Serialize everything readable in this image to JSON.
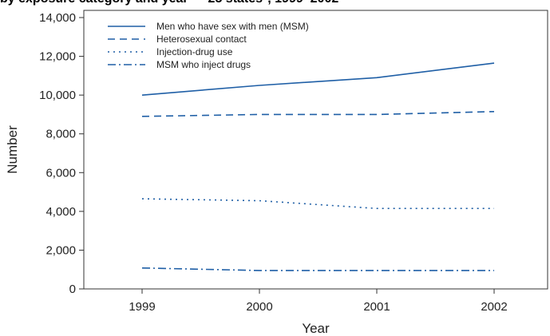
{
  "header": {
    "title": "by exposure category and year — 25 states*, 1999–2002"
  },
  "chart_data": {
    "type": "line",
    "xlabel": "Year",
    "ylabel": "Number",
    "x": [
      "1999",
      "2000",
      "2001",
      "2002"
    ],
    "ylim": [
      0,
      14000
    ],
    "yticks": [
      0,
      2000,
      4000,
      6000,
      8000,
      10000,
      12000,
      14000
    ],
    "ytick_labels": [
      "0",
      "2,000",
      "4,000",
      "6,000",
      "8,000",
      "10,000",
      "12,000",
      "14,000"
    ],
    "legend_position": "top-left",
    "grid": false,
    "color": "#1f5fa6",
    "series": [
      {
        "name": "Men who have sex with men (MSM)",
        "style": "solid",
        "values": [
          10000,
          10500,
          10900,
          11650
        ]
      },
      {
        "name": "Heterosexual contact",
        "style": "dashed",
        "values": [
          8900,
          9000,
          9000,
          9150
        ]
      },
      {
        "name": "Injection-drug use",
        "style": "dotted",
        "values": [
          4650,
          4550,
          4150,
          4150
        ]
      },
      {
        "name": "MSM who inject drugs",
        "style": "dashdot",
        "values": [
          1080,
          950,
          950,
          950
        ]
      }
    ]
  }
}
